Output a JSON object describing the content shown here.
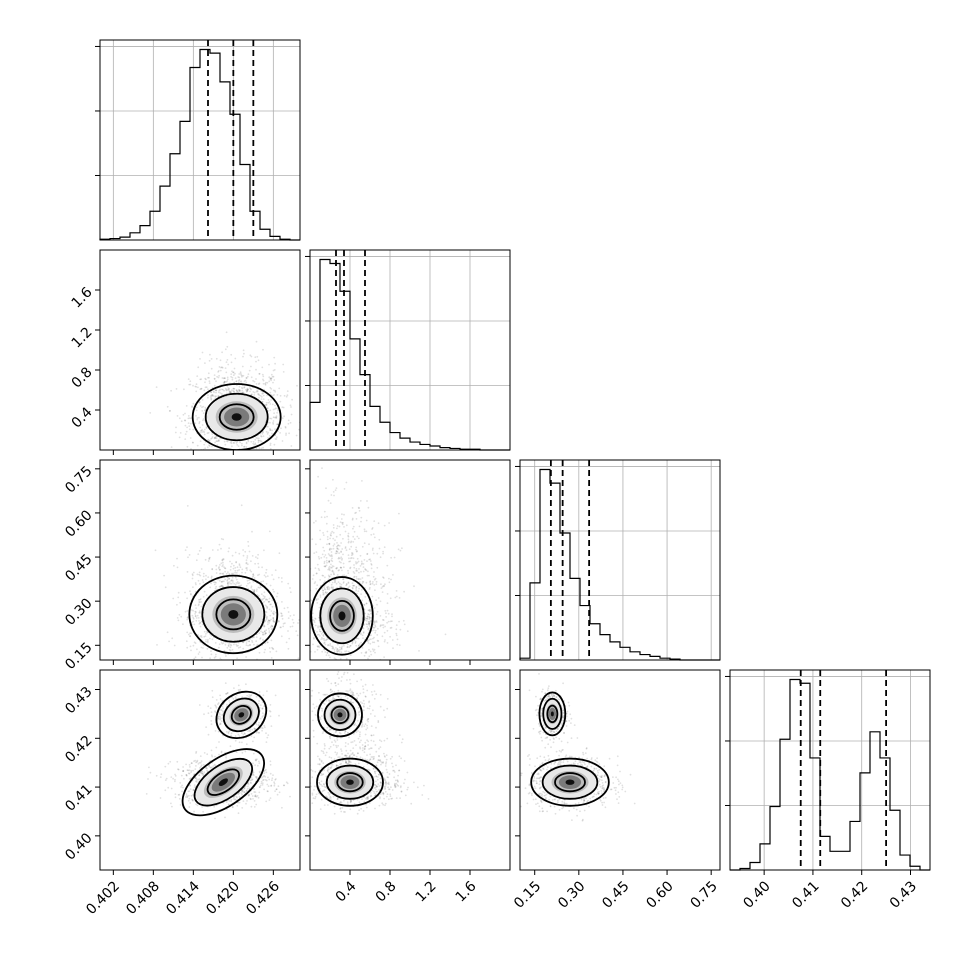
{
  "chart_data": {
    "type": "corner",
    "parameters": [
      {
        "range": [
          0.4,
          0.43
        ],
        "ticks": [
          0.402,
          0.408,
          0.414,
          0.42,
          0.426
        ],
        "tick_labels": [
          "0.402",
          "0.408",
          "0.414",
          "0.420",
          "0.426"
        ]
      },
      {
        "range": [
          0.0,
          2.0
        ],
        "ticks": [
          0.4,
          0.8,
          1.2,
          1.6
        ],
        "tick_labels": [
          "0.4",
          "0.8",
          "1.2",
          "1.6"
        ]
      },
      {
        "range": [
          0.1,
          0.78
        ],
        "ticks": [
          0.15,
          0.3,
          0.45,
          0.6,
          0.75
        ],
        "tick_labels": [
          "0.15",
          "0.30",
          "0.45",
          "0.60",
          "0.75"
        ]
      },
      {
        "range": [
          0.393,
          0.434
        ],
        "ticks": [
          0.4,
          0.41,
          0.42,
          0.43
        ],
        "tick_labels": [
          "0.40",
          "0.41",
          "0.42",
          "0.43"
        ]
      }
    ],
    "quantiles": [
      [
        0.4162,
        0.42,
        0.423
      ],
      [
        0.26,
        0.34,
        0.55
      ],
      [
        0.205,
        0.245,
        0.335
      ],
      [
        0.4075,
        0.4115,
        0.425
      ]
    ],
    "histograms": [
      {
        "counts": [
          1,
          2,
          4,
          10,
          20,
          40,
          75,
          120,
          165,
          240,
          265,
          260,
          220,
          175,
          105,
          40,
          15,
          5,
          1,
          0
        ]
      },
      {
        "counts": [
          60,
          240,
          235,
          200,
          140,
          95,
          55,
          35,
          22,
          15,
          10,
          7,
          5,
          3,
          2,
          1,
          1,
          0,
          0,
          0
        ]
      },
      {
        "counts": [
          2,
          85,
          210,
          195,
          140,
          90,
          60,
          40,
          28,
          20,
          14,
          9,
          6,
          4,
          2,
          1,
          0,
          0,
          0,
          0
        ]
      },
      {
        "counts": [
          0,
          2,
          10,
          35,
          85,
          175,
          255,
          250,
          150,
          45,
          25,
          25,
          65,
          130,
          185,
          150,
          80,
          20,
          5,
          0
        ]
      }
    ],
    "grid": true,
    "grid_scale": {
      "hist_top_frac": 1.05
    },
    "pairs": [
      {
        "row": 1,
        "col": 0,
        "clusters": [
          {
            "mx": 0.4205,
            "my": 0.33,
            "sx": 0.003,
            "sy": 0.15,
            "w": 1.0
          }
        ]
      },
      {
        "row": 2,
        "col": 0,
        "clusters": [
          {
            "mx": 0.42,
            "my": 0.255,
            "sx": 0.003,
            "sy": 0.06,
            "w": 1.0
          }
        ]
      },
      {
        "row": 2,
        "col": 1,
        "clusters": [
          {
            "mx": 0.32,
            "my": 0.25,
            "sx": 0.14,
            "sy": 0.06,
            "w": 1.0
          }
        ]
      },
      {
        "row": 3,
        "col": 0,
        "clusters": [
          {
            "mx": 0.4212,
            "my": 0.4248,
            "sx": 0.0018,
            "sy": 0.002,
            "w": 0.35
          },
          {
            "mx": 0.4185,
            "my": 0.411,
            "sx": 0.0032,
            "sy": 0.0022,
            "w": 0.65
          }
        ]
      },
      {
        "row": 3,
        "col": 1,
        "clusters": [
          {
            "mx": 0.3,
            "my": 0.4248,
            "sx": 0.1,
            "sy": 0.002,
            "w": 0.35
          },
          {
            "mx": 0.4,
            "my": 0.411,
            "sx": 0.15,
            "sy": 0.0022,
            "w": 0.65
          }
        ]
      },
      {
        "row": 3,
        "col": 2,
        "clusters": [
          {
            "mx": 0.21,
            "my": 0.425,
            "sx": 0.02,
            "sy": 0.002,
            "w": 0.35
          },
          {
            "mx": 0.27,
            "my": 0.411,
            "sx": 0.06,
            "sy": 0.0022,
            "w": 0.65
          }
        ]
      }
    ]
  }
}
